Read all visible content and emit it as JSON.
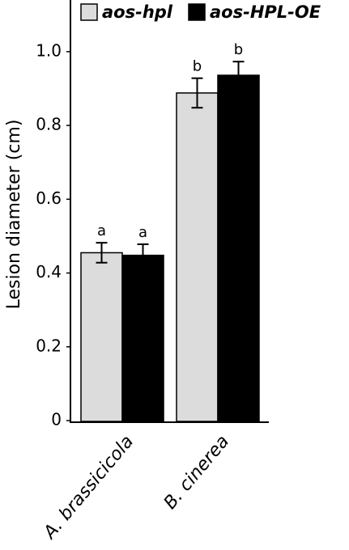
{
  "chart_data": {
    "type": "bar",
    "y_label": "Lesion diameter (cm)",
    "categories": [
      "A. brassicicola",
      "B. cinerea"
    ],
    "series": [
      {
        "name": "aos-hpl",
        "color": "#dcdcdc",
        "values": [
          0.455,
          0.888
        ],
        "errors": [
          0.027,
          0.04
        ],
        "letters": [
          "a",
          "b"
        ]
      },
      {
        "name": "aos-HPL-OE",
        "color": "#000000",
        "values": [
          0.448,
          0.936
        ],
        "errors": [
          0.03,
          0.037
        ],
        "letters": [
          "a",
          "b"
        ]
      }
    ],
    "ylim": [
      0,
      1.14
    ],
    "yticks": [
      0,
      0.2,
      0.4,
      0.6,
      0.8,
      {
        "value": 1,
        "label": "1.0"
      }
    ]
  }
}
